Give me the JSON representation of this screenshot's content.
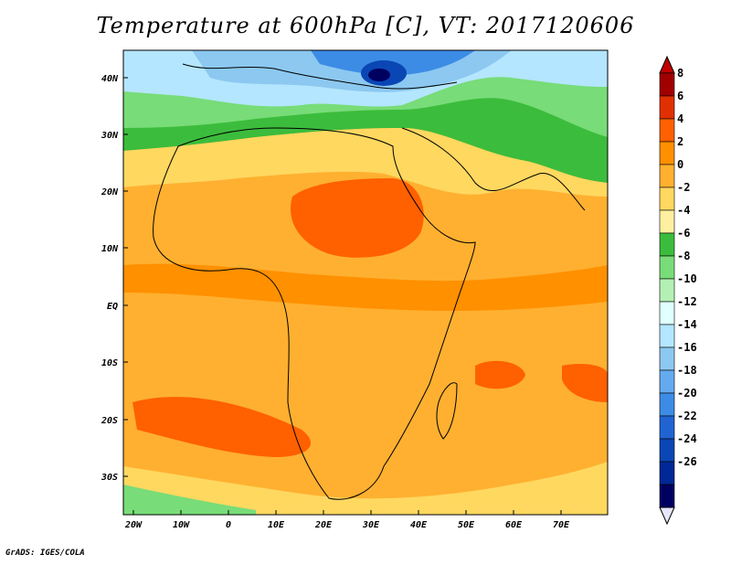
{
  "title": "Temperature at 600hPa [C], VT: 2017120606",
  "credit": "GrADS: IGES/COLA",
  "lat_labels": [
    "40N",
    "30N",
    "20N",
    "10N",
    "EQ",
    "10S",
    "20S",
    "30S"
  ],
  "lon_labels": [
    "20W",
    "10W",
    "0",
    "10E",
    "20E",
    "30E",
    "40E",
    "50E",
    "60E",
    "70E"
  ],
  "colorbar": {
    "labels": [
      "8",
      "6",
      "4",
      "2",
      "0",
      "-2",
      "-4",
      "-6",
      "-8",
      "-10",
      "-12",
      "-14",
      "-16",
      "-18",
      "-20",
      "-22",
      "-24",
      "-26"
    ],
    "colors": [
      "#a00000",
      "#e03000",
      "#ff6000",
      "#ff9000",
      "#ffb030",
      "#ffd860",
      "#fff0a0",
      "#3cbc3c",
      "#78dc78",
      "#b4f0b4",
      "#e0ffff",
      "#b4e6ff",
      "#8cc8f0",
      "#64aaf0",
      "#3c8ce6",
      "#2064d2",
      "#0a46b4",
      "#002896",
      "#000060"
    ],
    "top_color": "#c00000",
    "bottom_color": "#e6e6ff"
  }
}
